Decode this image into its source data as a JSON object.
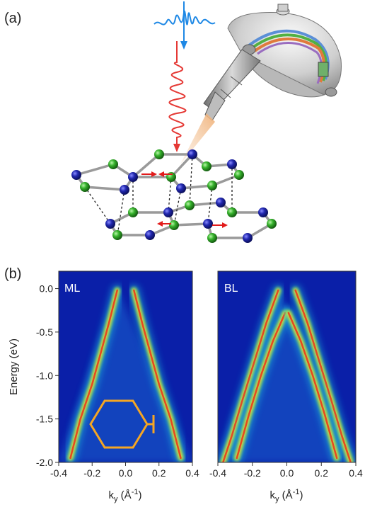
{
  "figure": {
    "panel_a_label": "(a)",
    "panel_b_label": "(b)"
  },
  "colors": {
    "map_background": "#0a1fa8",
    "lattice_atom_a": "#1a1fa0",
    "lattice_atom_b": "#2fb52a",
    "phonon_arrow": "#e21b1b",
    "probe_pulse": "#1e88e5",
    "pump_pulse": "#e53935",
    "brillouin_zone": "#f5a623",
    "photoemission_cone": "#f4c9a0"
  },
  "chart_data": [
    {
      "type": "heatmap",
      "inset_label": "ML",
      "xlabel": "k",
      "xlabel_sub": "y",
      "xlabel_unit_open": " (Å",
      "xlabel_unit_sup": "-1",
      "xlabel_unit_close": ")",
      "ylabel": "Energy (eV)",
      "xlim": [
        -0.4,
        0.4
      ],
      "ylim": [
        -2.0,
        0.2
      ],
      "xticks": [
        -0.4,
        -0.2,
        0.0,
        0.2,
        0.4
      ],
      "xtick_labels": [
        "-0.4",
        "-0.2",
        "0.0",
        "0.2",
        "0.4"
      ],
      "yticks": [
        0.0,
        -0.5,
        -1.0,
        -1.5,
        -2.0
      ],
      "ytick_labels": [
        "0.0",
        "-0.5",
        "-1.0",
        "-1.5",
        "-2.0"
      ],
      "bands": [
        {
          "name": "",
          "points": [
            [
              -0.05,
              -0.02
            ],
            [
              -0.1,
              -0.4
            ],
            [
              -0.15,
              -0.75
            ],
            [
              -0.2,
              -1.1
            ],
            [
              -0.27,
              -1.5
            ],
            [
              -0.33,
              -1.95
            ]
          ]
        },
        {
          "name": "",
          "points": [
            [
              0.05,
              -0.02
            ],
            [
              0.1,
              -0.4
            ],
            [
              0.15,
              -0.75
            ],
            [
              0.2,
              -1.1
            ],
            [
              0.27,
              -1.5
            ],
            [
              0.33,
              -1.95
            ]
          ]
        }
      ],
      "inset": {
        "shape": "hexagon",
        "center": [
          0.0,
          -1.55
        ],
        "cut_direction": "vertical"
      }
    },
    {
      "type": "heatmap",
      "inset_label": "BL",
      "xlabel": "k",
      "xlabel_sub": "y",
      "xlabel_unit_open": " (Å",
      "xlabel_unit_sup": "-1",
      "xlabel_unit_close": ")",
      "xlim": [
        -0.4,
        0.4
      ],
      "ylim": [
        -2.0,
        0.2
      ],
      "xticks": [
        -0.4,
        -0.2,
        0.0,
        0.2,
        0.4
      ],
      "xtick_labels": [
        "-0.4",
        "-0.2",
        "0.0",
        "0.2",
        "0.4"
      ],
      "bands": [
        {
          "name": "",
          "points": [
            [
              -0.05,
              -0.02
            ],
            [
              -0.12,
              -0.4
            ],
            [
              -0.19,
              -0.85
            ],
            [
              -0.26,
              -1.3
            ],
            [
              -0.32,
              -1.7
            ],
            [
              -0.37,
              -2.0
            ]
          ]
        },
        {
          "name": "",
          "points": [
            [
              0.05,
              -0.02
            ],
            [
              0.12,
              -0.4
            ],
            [
              0.19,
              -0.85
            ],
            [
              0.26,
              -1.3
            ],
            [
              0.32,
              -1.7
            ],
            [
              0.37,
              -2.0
            ]
          ]
        },
        {
          "name": "",
          "points": [
            [
              -0.01,
              -0.28
            ],
            [
              -0.08,
              -0.6
            ],
            [
              -0.15,
              -1.0
            ],
            [
              -0.22,
              -1.45
            ],
            [
              -0.29,
              -1.95
            ]
          ]
        },
        {
          "name": "",
          "points": [
            [
              0.01,
              -0.28
            ],
            [
              0.08,
              -0.6
            ],
            [
              0.15,
              -1.0
            ],
            [
              0.22,
              -1.45
            ],
            [
              0.29,
              -1.95
            ]
          ]
        }
      ]
    }
  ]
}
